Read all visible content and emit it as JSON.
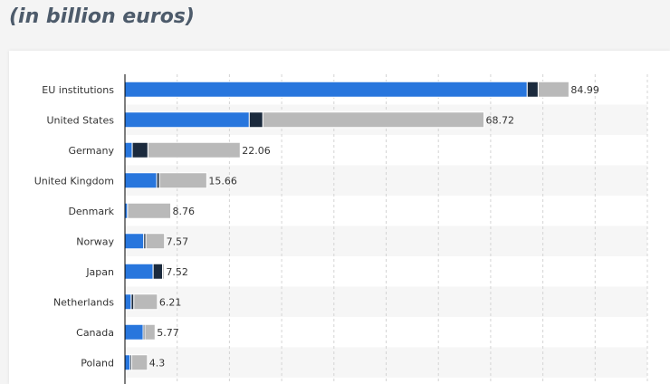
{
  "subtitle": "(in billion euros)",
  "colors": {
    "series_1": "#2876dd",
    "series_2": "#1b2a3d",
    "series_3": "#b9b9b9",
    "row_alt": "#f6f6f6",
    "grid": "#d4d4d4",
    "axis": "#000000"
  },
  "chart_data": {
    "type": "bar",
    "orientation": "horizontal",
    "stacked": true,
    "categories": [
      "EU institutions",
      "United States",
      "Germany",
      "United Kingdom",
      "Denmark",
      "Norway",
      "Japan",
      "Netherlands",
      "Canada",
      "Poland"
    ],
    "series": [
      {
        "values": [
          77.0,
          23.8,
          1.4,
          6.1,
          0.5,
          3.6,
          5.4,
          1.2,
          3.5,
          1.0
        ]
      },
      {
        "values": [
          2.1,
          2.6,
          3.0,
          0.5,
          0.0,
          0.4,
          1.8,
          0.5,
          0.3,
          0.3
        ]
      },
      {
        "values": [
          5.89,
          42.32,
          17.66,
          9.06,
          8.26,
          3.57,
          0.32,
          4.51,
          1.97,
          3.0
        ]
      }
    ],
    "totals": [
      "84.99",
      "68.72",
      "22.06",
      "15.66",
      "8.76",
      "7.57",
      "7.52",
      "6.21",
      "5.77",
      "4.3"
    ],
    "xlim": [
      0,
      100
    ],
    "grid": true
  }
}
